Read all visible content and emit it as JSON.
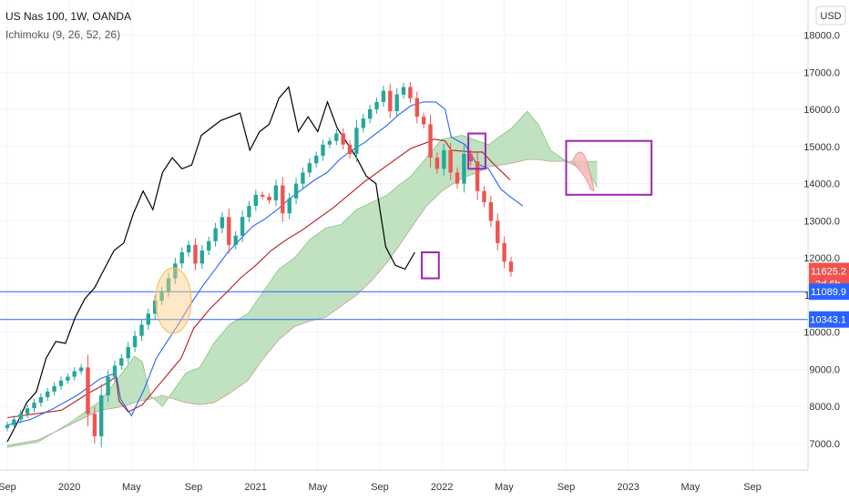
{
  "header": {
    "symbol_title": "US Nas 100, 1W, OANDA",
    "indicator": "Ichimoku (9, 26, 52, 26)",
    "currency": "USD"
  },
  "colors": {
    "up": "#26a69a",
    "down": "#ef5350",
    "tenkan": "#2962ff",
    "kijun": "#b71c1c",
    "chikou": "#000000",
    "cloud_bull": "#a5d6a7",
    "cloud_bear": "#f8bbbb",
    "hline": "#2962ff",
    "highlight_box": "#9c27b0",
    "circle": "#ffcc80",
    "last_price": "#ef5350",
    "hline_tag": "#2962ff"
  },
  "chart_data": {
    "type": "candlestick",
    "x_axis": {
      "ticks": [
        {
          "t": 0.0,
          "label": "Sep"
        },
        {
          "t": 4.0,
          "label": "2020"
        },
        {
          "t": 8.0,
          "label": "May"
        },
        {
          "t": 12.0,
          "label": "Sep"
        },
        {
          "t": 16.0,
          "label": "2021"
        },
        {
          "t": 20.0,
          "label": "May"
        },
        {
          "t": 24.0,
          "label": "Sep"
        },
        {
          "t": 28.0,
          "label": "2022"
        },
        {
          "t": 32.0,
          "label": "May"
        },
        {
          "t": 36.0,
          "label": "Sep"
        },
        {
          "t": 40.0,
          "label": "2023"
        },
        {
          "t": 44.0,
          "label": "May"
        },
        {
          "t": 48.0,
          "label": "Sep"
        }
      ],
      "range": [
        0,
        51
      ]
    },
    "y_axis": {
      "ticks": [
        7000,
        8000,
        9000,
        10000,
        11000,
        12000,
        13000,
        14000,
        15000,
        16000,
        17000,
        18000
      ],
      "tick_labels": [
        "7000.0",
        "8000.0",
        "9000.0",
        "10000.0",
        "11000.0",
        "12000.0",
        "13000.0",
        "14000.0",
        "15000.0",
        "16000.0",
        "17000.0",
        "18000.0"
      ],
      "range": [
        6550,
        18800
      ]
    },
    "price_tags": [
      {
        "value": 11625.2,
        "label": "11625.2",
        "sub": "3d 6h",
        "kind": "last"
      },
      {
        "value": 11089.9,
        "label": "11089.9",
        "kind": "hline"
      },
      {
        "value": 10343.1,
        "label": "10343.1",
        "kind": "hline"
      }
    ],
    "horizontal_lines": [
      11089.9,
      10343.1
    ],
    "closes": [
      7500,
      7650,
      7800,
      7950,
      8100,
      8250,
      8400,
      8550,
      8700,
      8800,
      8950,
      9050,
      7800,
      7200,
      8300,
      8800,
      9100,
      9300,
      9600,
      9900,
      10200,
      10500,
      10850,
      11100,
      11450,
      11850,
      12150,
      12350,
      11850,
      12200,
      12450,
      12800,
      13100,
      12350,
      12600,
      13100,
      13400,
      13700,
      13650,
      13550,
      13950,
      13200,
      13600,
      14000,
      14300,
      14550,
      14750,
      15050,
      15150,
      15350,
      15050,
      14800,
      15500,
      15750,
      16000,
      16200,
      16500,
      15950,
      16400,
      16600,
      16300,
      15800,
      15600,
      14700,
      14400,
      14900,
      14300,
      14000,
      14800,
      14600,
      13800,
      13500,
      13000,
      12400,
      11900,
      11625.2
    ],
    "chikou": [
      7050,
      7550,
      8100,
      8400,
      9300,
      9750,
      9700,
      10400,
      10900,
      11200,
      11700,
      12200,
      12400,
      13200,
      13800,
      13300,
      14300,
      14700,
      14400,
      14500,
      15300,
      15500,
      15700,
      15800,
      15900,
      14900,
      15400,
      15600,
      16300,
      16600,
      15400,
      15800,
      15400,
      16200,
      15500,
      15100,
      14700,
      14200,
      14000,
      12300,
      11800,
      11700,
      12150
    ],
    "kijun_path": [
      [
        0,
        7700
      ],
      [
        3.5,
        7900
      ],
      [
        5.2,
        8350
      ],
      [
        6.5,
        8650
      ],
      [
        7,
        8800
      ],
      [
        7.2,
        8150
      ],
      [
        7.8,
        7850
      ],
      [
        8.7,
        8050
      ],
      [
        9.7,
        8550
      ],
      [
        10.6,
        9000
      ],
      [
        11.2,
        9300
      ],
      [
        12,
        10100
      ],
      [
        12.6,
        10400
      ],
      [
        13.1,
        10650
      ],
      [
        14.2,
        11100
      ],
      [
        15,
        11450
      ],
      [
        16,
        11800
      ],
      [
        17,
        12200
      ],
      [
        18,
        12500
      ],
      [
        19,
        12750
      ],
      [
        20,
        13050
      ],
      [
        21,
        13350
      ],
      [
        22,
        13700
      ],
      [
        23,
        14050
      ],
      [
        24,
        14350
      ],
      [
        25,
        14650
      ],
      [
        26,
        14950
      ],
      [
        27,
        15100
      ],
      [
        27.5,
        15200
      ],
      [
        28.2,
        15150
      ],
      [
        28.6,
        14900
      ],
      [
        30,
        14850
      ],
      [
        30.6,
        14850
      ],
      [
        31.4,
        14500
      ],
      [
        32.4,
        14100
      ]
    ],
    "tenkan_path": [
      [
        0,
        7500
      ],
      [
        1.5,
        7650
      ],
      [
        3,
        7950
      ],
      [
        4.5,
        8300
      ],
      [
        6,
        8750
      ],
      [
        7,
        8900
      ],
      [
        7.3,
        8200
      ],
      [
        8,
        7750
      ],
      [
        8.8,
        8450
      ],
      [
        9.6,
        9300
      ],
      [
        10.3,
        9750
      ],
      [
        11,
        10200
      ],
      [
        11.8,
        10750
      ],
      [
        12.6,
        11250
      ],
      [
        13.4,
        11700
      ],
      [
        14.2,
        12150
      ],
      [
        15,
        12500
      ],
      [
        15.8,
        12850
      ],
      [
        16.6,
        13050
      ],
      [
        17.4,
        13300
      ],
      [
        18.2,
        13600
      ],
      [
        19,
        13850
      ],
      [
        19.8,
        14100
      ],
      [
        20.6,
        14300
      ],
      [
        21.4,
        14650
      ],
      [
        22.2,
        14900
      ],
      [
        23,
        15100
      ],
      [
        23.6,
        15300
      ],
      [
        24.4,
        15550
      ],
      [
        25.2,
        15850
      ],
      [
        26,
        16100
      ],
      [
        26.8,
        16200
      ],
      [
        27.6,
        16200
      ],
      [
        28.2,
        16000
      ],
      [
        28.6,
        15250
      ],
      [
        29.5,
        15050
      ],
      [
        30.2,
        14550
      ],
      [
        31,
        14400
      ],
      [
        31.8,
        13850
      ],
      [
        32.4,
        13650
      ],
      [
        33.2,
        13400
      ]
    ],
    "span_a": [
      [
        0,
        6900
      ],
      [
        2,
        7050
      ],
      [
        4,
        7550
      ],
      [
        6,
        8150
      ],
      [
        7.2,
        8800
      ],
      [
        8.2,
        9350
      ],
      [
        8.7,
        9200
      ],
      [
        9.2,
        8300
      ],
      [
        10,
        8000
      ],
      [
        11.5,
        8900
      ],
      [
        12.4,
        9050
      ],
      [
        13.3,
        9700
      ],
      [
        14.3,
        10200
      ],
      [
        15.5,
        10500
      ],
      [
        16.5,
        11100
      ],
      [
        17.5,
        11700
      ],
      [
        18.5,
        12000
      ],
      [
        19.5,
        12500
      ],
      [
        20.5,
        12800
      ],
      [
        21.5,
        12900
      ],
      [
        22.5,
        13300
      ],
      [
        23.5,
        13500
      ],
      [
        24.5,
        13700
      ],
      [
        25.2,
        13950
      ],
      [
        26,
        14200
      ],
      [
        27,
        14700
      ],
      [
        28,
        15200
      ],
      [
        29.3,
        15300
      ],
      [
        30.3,
        15150
      ],
      [
        31,
        15050
      ],
      [
        32.5,
        15500
      ],
      [
        33.5,
        15950
      ],
      [
        34.2,
        15600
      ],
      [
        35,
        14900
      ],
      [
        36,
        14600
      ],
      [
        37,
        14400
      ],
      [
        37.6,
        14200
      ],
      [
        38,
        13900
      ]
    ],
    "span_b": [
      [
        0,
        6950
      ],
      [
        2,
        7100
      ],
      [
        4,
        7500
      ],
      [
        6,
        7900
      ],
      [
        7.5,
        8000
      ],
      [
        8.5,
        8150
      ],
      [
        9.2,
        8200
      ],
      [
        10,
        8300
      ],
      [
        11.5,
        8100
      ],
      [
        12.4,
        8050
      ],
      [
        13.3,
        8100
      ],
      [
        14.3,
        8350
      ],
      [
        15.5,
        8700
      ],
      [
        16.5,
        9300
      ],
      [
        17.5,
        9800
      ],
      [
        18.5,
        10150
      ],
      [
        19.5,
        10300
      ],
      [
        20.5,
        10400
      ],
      [
        21.5,
        10700
      ],
      [
        22.5,
        11000
      ],
      [
        23.5,
        11400
      ],
      [
        24.5,
        11900
      ],
      [
        25.2,
        12300
      ],
      [
        26,
        12800
      ],
      [
        27,
        13400
      ],
      [
        28,
        13800
      ],
      [
        29.3,
        14150
      ],
      [
        30.3,
        14300
      ],
      [
        31,
        14450
      ],
      [
        32.5,
        14550
      ],
      [
        33.5,
        14650
      ],
      [
        34.2,
        14650
      ],
      [
        35,
        14600
      ],
      [
        36,
        14600
      ],
      [
        37,
        14600
      ],
      [
        37.6,
        14600
      ],
      [
        38,
        14600
      ]
    ],
    "highlight_boxes": [
      {
        "t0": 26.7,
        "t1": 27.8,
        "v0": 11450,
        "v1": 12150
      },
      {
        "t0": 29.7,
        "t1": 30.8,
        "v0": 14400,
        "v1": 15350
      },
      {
        "t0": 36.0,
        "t1": 41.5,
        "v0": 13700,
        "v1": 15150
      }
    ],
    "circle_marker": {
      "t": 10.7,
      "v": 10850,
      "rx_t": 1.15,
      "ry_v": 880
    }
  }
}
